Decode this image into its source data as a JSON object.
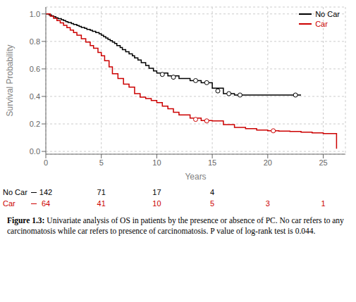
{
  "chart_data": {
    "type": "step",
    "xlabel": "Years",
    "ylabel": "Survival Probability",
    "xlim": [
      0,
      27
    ],
    "ylim": [
      -0.02,
      1.05
    ],
    "xticks": [
      0,
      5,
      10,
      15,
      20,
      25
    ],
    "yticks": [
      {
        "value": 0.0,
        "label": "0.0"
      },
      0.2,
      0.4,
      0.6,
      0.8,
      {
        "value": 1.0,
        "label": "1.0"
      }
    ],
    "grid": true,
    "legend": "upper right",
    "series": [
      {
        "name": "No Car",
        "color": "#000000",
        "x": [
          0,
          0.3,
          0.5,
          0.7,
          0.9,
          1.1,
          1.4,
          1.6,
          1.8,
          2.0,
          2.3,
          2.5,
          2.8,
          3.0,
          3.2,
          3.5,
          3.7,
          4.0,
          4.2,
          4.5,
          4.8,
          5.0,
          5.2,
          5.4,
          5.6,
          5.8,
          6.0,
          6.2,
          6.4,
          6.7,
          6.9,
          7.2,
          7.5,
          7.8,
          8.0,
          8.3,
          8.6,
          9.0,
          9.3,
          9.7,
          10.0,
          11.0,
          12.0,
          13.0,
          14.0,
          15.0,
          16.0,
          17.0,
          18.0,
          19.0,
          20.0,
          21.0,
          22.0,
          23.0
        ],
        "values": [
          1.0,
          0.993,
          0.986,
          0.979,
          0.972,
          0.965,
          0.958,
          0.951,
          0.944,
          0.937,
          0.93,
          0.923,
          0.916,
          0.909,
          0.902,
          0.895,
          0.888,
          0.881,
          0.874,
          0.865,
          0.855,
          0.845,
          0.835,
          0.825,
          0.815,
          0.805,
          0.795,
          0.785,
          0.77,
          0.755,
          0.74,
          0.725,
          0.71,
          0.695,
          0.68,
          0.665,
          0.645,
          0.625,
          0.605,
          0.585,
          0.57,
          0.55,
          0.53,
          0.515,
          0.5,
          0.46,
          0.42,
          0.41,
          0.41,
          0.41,
          0.41,
          0.41,
          0.41,
          0.41
        ],
        "censored_x": [
          10.5,
          11.5,
          13.5,
          14.5,
          15.5,
          16.5,
          17.5,
          22.5
        ],
        "censored_values": [
          0.56,
          0.54,
          0.515,
          0.5,
          0.44,
          0.42,
          0.41,
          0.41
        ],
        "at_risk": [
          142,
          71,
          17,
          4,
          null,
          null
        ]
      },
      {
        "name": "Car",
        "color": "#cc0000",
        "x": [
          0,
          0.4,
          0.7,
          1.0,
          1.3,
          1.6,
          1.9,
          2.2,
          2.5,
          2.8,
          3.2,
          3.6,
          4.0,
          4.3,
          4.7,
          5.0,
          5.3,
          5.7,
          6.0,
          6.5,
          7.0,
          7.5,
          8.0,
          8.5,
          9.0,
          9.5,
          10.0,
          10.5,
          11.0,
          11.5,
          12.0,
          13.0,
          14.0,
          15.0,
          16.0,
          17.0,
          18.0,
          19.0,
          20.0,
          21.0,
          22.0,
          23.0,
          24.0,
          25.0,
          26.2
        ],
        "values": [
          1.0,
          0.984,
          0.968,
          0.952,
          0.935,
          0.917,
          0.9,
          0.882,
          0.864,
          0.845,
          0.82,
          0.795,
          0.77,
          0.75,
          0.72,
          0.695,
          0.66,
          0.615,
          0.565,
          0.53,
          0.49,
          0.468,
          0.42,
          0.395,
          0.385,
          0.37,
          0.355,
          0.33,
          0.31,
          0.285,
          0.265,
          0.242,
          0.225,
          0.222,
          0.195,
          0.175,
          0.165,
          0.155,
          0.15,
          0.148,
          0.145,
          0.14,
          0.135,
          0.13,
          0.02
        ],
        "censored_x": [
          13.5,
          14.5,
          20.5
        ],
        "censored_values": [
          0.233,
          0.222,
          0.15
        ],
        "at_risk": [
          64,
          41,
          10,
          5,
          3,
          1
        ]
      }
    ],
    "at_risk_x": [
      0,
      5,
      10,
      15,
      20,
      25
    ],
    "caption": {
      "bold": "Figure 1.3:",
      "text": " Univariate analysis of OS in patients by the presence or absence of PC. No car refers to any carcinomatosis while car refers to presence of carcinomatosis. P value of log-rank test is 0.044."
    }
  }
}
